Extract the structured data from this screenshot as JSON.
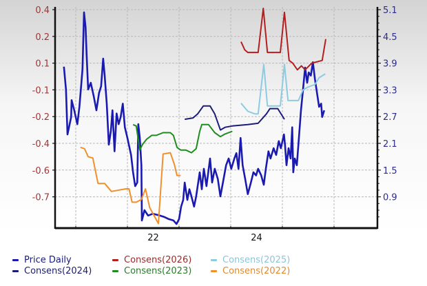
{
  "chart_data": {
    "type": "line",
    "title": "",
    "x_tick_labels": [
      {
        "x": 2022.5,
        "label": "22"
      },
      {
        "x": 2024.5,
        "label": "24"
      }
    ],
    "x_gridlines": [
      2021,
      2022,
      2023,
      2024,
      2025,
      2026
    ],
    "xlim": [
      2020.6,
      2026.84
    ],
    "left_axis_tick_labels": [
      "0.4",
      "0.2",
      "0.1",
      "-0.1",
      "-0.2",
      "-0.4",
      "-0.6",
      "-0.7"
    ],
    "right_axis_tick_labels": [
      "5.1",
      "4.5",
      "3.9",
      "3.3",
      "2.7",
      "2.1",
      "1.5",
      "0.9"
    ],
    "right_axis_range": [
      0.2,
      5.2
    ],
    "grid": true,
    "legend_placement": "bottom",
    "series": [
      {
        "name": "Price Daily",
        "axis": "right",
        "color": "#1a1ab0",
        "points": [
          [
            2020.77,
            3.82
          ],
          [
            2020.81,
            3.31
          ],
          [
            2020.84,
            2.3
          ],
          [
            2020.91,
            2.69
          ],
          [
            2020.92,
            3.07
          ],
          [
            2020.97,
            2.84
          ],
          [
            2021.03,
            2.53
          ],
          [
            2021.07,
            2.92
          ],
          [
            2021.11,
            3.46
          ],
          [
            2021.13,
            3.77
          ],
          [
            2021.16,
            5.04
          ],
          [
            2021.19,
            4.7
          ],
          [
            2021.21,
            4.08
          ],
          [
            2021.24,
            3.31
          ],
          [
            2021.29,
            3.46
          ],
          [
            2021.35,
            3.15
          ],
          [
            2021.4,
            2.84
          ],
          [
            2021.45,
            3.23
          ],
          [
            2021.49,
            3.38
          ],
          [
            2021.53,
            4.0
          ],
          [
            2021.56,
            3.62
          ],
          [
            2021.6,
            2.99
          ],
          [
            2021.64,
            2.07
          ],
          [
            2021.68,
            2.38
          ],
          [
            2021.71,
            2.84
          ],
          [
            2021.75,
            1.92
          ],
          [
            2021.79,
            2.77
          ],
          [
            2021.83,
            2.53
          ],
          [
            2021.87,
            2.69
          ],
          [
            2021.91,
            2.99
          ],
          [
            2021.95,
            2.46
          ],
          [
            2022.0,
            2.22
          ],
          [
            2022.07,
            1.84
          ],
          [
            2022.11,
            1.45
          ],
          [
            2022.15,
            1.14
          ],
          [
            2022.19,
            1.22
          ],
          [
            2022.21,
            2.53
          ],
          [
            2022.24,
            2.22
          ],
          [
            2022.27,
            1.61
          ],
          [
            2022.28,
            0.37
          ],
          [
            2022.33,
            0.6
          ],
          [
            2022.4,
            0.48
          ],
          [
            2022.49,
            0.52
          ],
          [
            2022.6,
            0.49
          ],
          [
            2022.71,
            0.45
          ],
          [
            2022.8,
            0.4
          ],
          [
            2022.89,
            0.37
          ],
          [
            2022.95,
            0.29
          ],
          [
            2023.0,
            0.4
          ],
          [
            2023.04,
            0.68
          ],
          [
            2023.08,
            0.83
          ],
          [
            2023.11,
            1.22
          ],
          [
            2023.16,
            0.83
          ],
          [
            2023.2,
            1.07
          ],
          [
            2023.24,
            0.91
          ],
          [
            2023.29,
            0.68
          ],
          [
            2023.33,
            0.91
          ],
          [
            2023.4,
            1.45
          ],
          [
            2023.44,
            1.07
          ],
          [
            2023.48,
            1.53
          ],
          [
            2023.53,
            1.14
          ],
          [
            2023.6,
            1.76
          ],
          [
            2023.64,
            1.22
          ],
          [
            2023.69,
            1.53
          ],
          [
            2023.75,
            1.3
          ],
          [
            2023.8,
            0.91
          ],
          [
            2023.85,
            1.22
          ],
          [
            2023.91,
            1.61
          ],
          [
            2023.96,
            1.76
          ],
          [
            2024.01,
            1.53
          ],
          [
            2024.07,
            1.76
          ],
          [
            2024.11,
            1.88
          ],
          [
            2024.15,
            1.53
          ],
          [
            2024.19,
            2.22
          ],
          [
            2024.23,
            1.61
          ],
          [
            2024.28,
            1.3
          ],
          [
            2024.33,
            0.96
          ],
          [
            2024.39,
            1.22
          ],
          [
            2024.44,
            1.45
          ],
          [
            2024.49,
            1.38
          ],
          [
            2024.53,
            1.53
          ],
          [
            2024.59,
            1.38
          ],
          [
            2024.64,
            1.17
          ],
          [
            2024.68,
            1.53
          ],
          [
            2024.73,
            1.92
          ],
          [
            2024.77,
            1.76
          ],
          [
            2024.83,
            1.99
          ],
          [
            2024.88,
            1.84
          ],
          [
            2024.93,
            2.15
          ],
          [
            2024.97,
            1.99
          ],
          [
            2025.03,
            2.3
          ],
          [
            2025.05,
            2.07
          ],
          [
            2025.08,
            1.61
          ],
          [
            2025.12,
            1.99
          ],
          [
            2025.16,
            1.76
          ],
          [
            2025.19,
            2.46
          ],
          [
            2025.21,
            1.45
          ],
          [
            2025.24,
            1.76
          ],
          [
            2025.28,
            1.61
          ],
          [
            2025.32,
            2.22
          ],
          [
            2025.36,
            2.84
          ],
          [
            2025.4,
            3.31
          ],
          [
            2025.44,
            3.8
          ],
          [
            2025.48,
            3.46
          ],
          [
            2025.51,
            3.69
          ],
          [
            2025.55,
            3.62
          ],
          [
            2025.59,
            3.92
          ],
          [
            2025.63,
            3.54
          ],
          [
            2025.67,
            3.23
          ],
          [
            2025.71,
            2.92
          ],
          [
            2025.75,
            2.99
          ],
          [
            2025.77,
            2.69
          ],
          [
            2025.81,
            2.84
          ]
        ]
      },
      {
        "name": "Consens(2026)",
        "axis": "left",
        "color": "#b41e1e",
        "points": [
          [
            2024.2,
            0.18
          ],
          [
            2024.27,
            0.15
          ],
          [
            2024.33,
            0.14
          ],
          [
            2024.53,
            0.14
          ],
          [
            2024.63,
            0.41
          ],
          [
            2024.71,
            0.14
          ],
          [
            2024.96,
            0.14
          ],
          [
            2025.04,
            0.38
          ],
          [
            2025.13,
            0.11
          ],
          [
            2025.2,
            0.1
          ],
          [
            2025.29,
            0.05
          ],
          [
            2025.37,
            0.08
          ],
          [
            2025.44,
            0.05
          ],
          [
            2025.57,
            0.1
          ],
          [
            2025.77,
            0.11
          ],
          [
            2025.84,
            0.19
          ]
        ]
      },
      {
        "name": "Consens(2025)",
        "axis": "left",
        "color": "#8ccbe0",
        "points": [
          [
            2024.2,
            -0.15
          ],
          [
            2024.33,
            -0.18
          ],
          [
            2024.47,
            -0.19
          ],
          [
            2024.53,
            -0.19
          ],
          [
            2024.64,
            0.09
          ],
          [
            2024.71,
            -0.16
          ],
          [
            2024.96,
            -0.16
          ],
          [
            2025.04,
            0.09
          ],
          [
            2025.11,
            -0.14
          ],
          [
            2025.23,
            -0.14
          ],
          [
            2025.31,
            -0.14
          ],
          [
            2025.4,
            -0.1
          ],
          [
            2025.49,
            -0.08
          ],
          [
            2025.63,
            -0.06
          ],
          [
            2025.71,
            -0.01
          ],
          [
            2025.83,
            0.02
          ]
        ]
      },
      {
        "name": "Consens(2024)",
        "axis": "left",
        "color": "#1c1c78",
        "points": [
          [
            2023.11,
            -0.22
          ],
          [
            2023.27,
            -0.21
          ],
          [
            2023.36,
            -0.19
          ],
          [
            2023.47,
            -0.16
          ],
          [
            2023.6,
            -0.16
          ],
          [
            2023.69,
            -0.19
          ],
          [
            2023.8,
            -0.3
          ],
          [
            2023.89,
            -0.28
          ],
          [
            2024.03,
            -0.27
          ],
          [
            2024.33,
            -0.26
          ],
          [
            2024.53,
            -0.25
          ],
          [
            2024.69,
            -0.19
          ],
          [
            2024.76,
            -0.17
          ],
          [
            2024.91,
            -0.17
          ],
          [
            2025.04,
            -0.22
          ]
        ]
      },
      {
        "name": "Consens(2023)",
        "axis": "left",
        "color": "#1f8c1f",
        "points": [
          [
            2022.11,
            -0.26
          ],
          [
            2022.17,
            -0.27
          ],
          [
            2022.24,
            -0.45
          ],
          [
            2022.29,
            -0.41
          ],
          [
            2022.37,
            -0.37
          ],
          [
            2022.47,
            -0.34
          ],
          [
            2022.56,
            -0.34
          ],
          [
            2022.69,
            -0.32
          ],
          [
            2022.83,
            -0.32
          ],
          [
            2022.89,
            -0.34
          ],
          [
            2022.96,
            -0.43
          ],
          [
            2023.03,
            -0.45
          ],
          [
            2023.13,
            -0.45
          ],
          [
            2023.24,
            -0.47
          ],
          [
            2023.33,
            -0.44
          ],
          [
            2023.4,
            -0.31
          ],
          [
            2023.44,
            -0.26
          ],
          [
            2023.57,
            -0.26
          ],
          [
            2023.69,
            -0.32
          ],
          [
            2023.8,
            -0.35
          ],
          [
            2023.89,
            -0.33
          ],
          [
            2024.03,
            -0.31
          ]
        ]
      },
      {
        "name": "Consens(2022)",
        "axis": "left",
        "color": "#f0902c",
        "points": [
          [
            2021.09,
            -0.43
          ],
          [
            2021.17,
            -0.44
          ],
          [
            2021.24,
            -0.5
          ],
          [
            2021.33,
            -0.51
          ],
          [
            2021.43,
            -0.65
          ],
          [
            2021.56,
            -0.65
          ],
          [
            2021.69,
            -0.68
          ],
          [
            2021.97,
            -0.67
          ],
          [
            2022.03,
            -0.67
          ],
          [
            2022.09,
            -0.72
          ],
          [
            2022.17,
            -0.72
          ],
          [
            2022.27,
            -0.71
          ],
          [
            2022.35,
            -0.67
          ],
          [
            2022.43,
            -0.74
          ],
          [
            2022.6,
            -0.8
          ],
          [
            2022.69,
            -0.48
          ],
          [
            2022.83,
            -0.47
          ],
          [
            2022.91,
            -0.56
          ],
          [
            2022.96,
            -0.62
          ],
          [
            2023.03,
            -0.62
          ]
        ]
      }
    ],
    "colors": {
      "left_axis_labels": "#a83232",
      "right_axis_labels": "#2c2c88",
      "axis_frame": "#111111"
    }
  },
  "legend": [
    {
      "label": "Price Daily",
      "color": "#1a1ab0"
    },
    {
      "label": "Consens(2026)",
      "color": "#b41e1e"
    },
    {
      "label": "Consens(2025)",
      "color": "#8ccbe0"
    },
    {
      "label": "Consens(2024)",
      "color": "#1c1c78"
    },
    {
      "label": "Consens(2023)",
      "color": "#1f8c1f"
    },
    {
      "label": "Consens(2022)",
      "color": "#f0902c"
    }
  ]
}
